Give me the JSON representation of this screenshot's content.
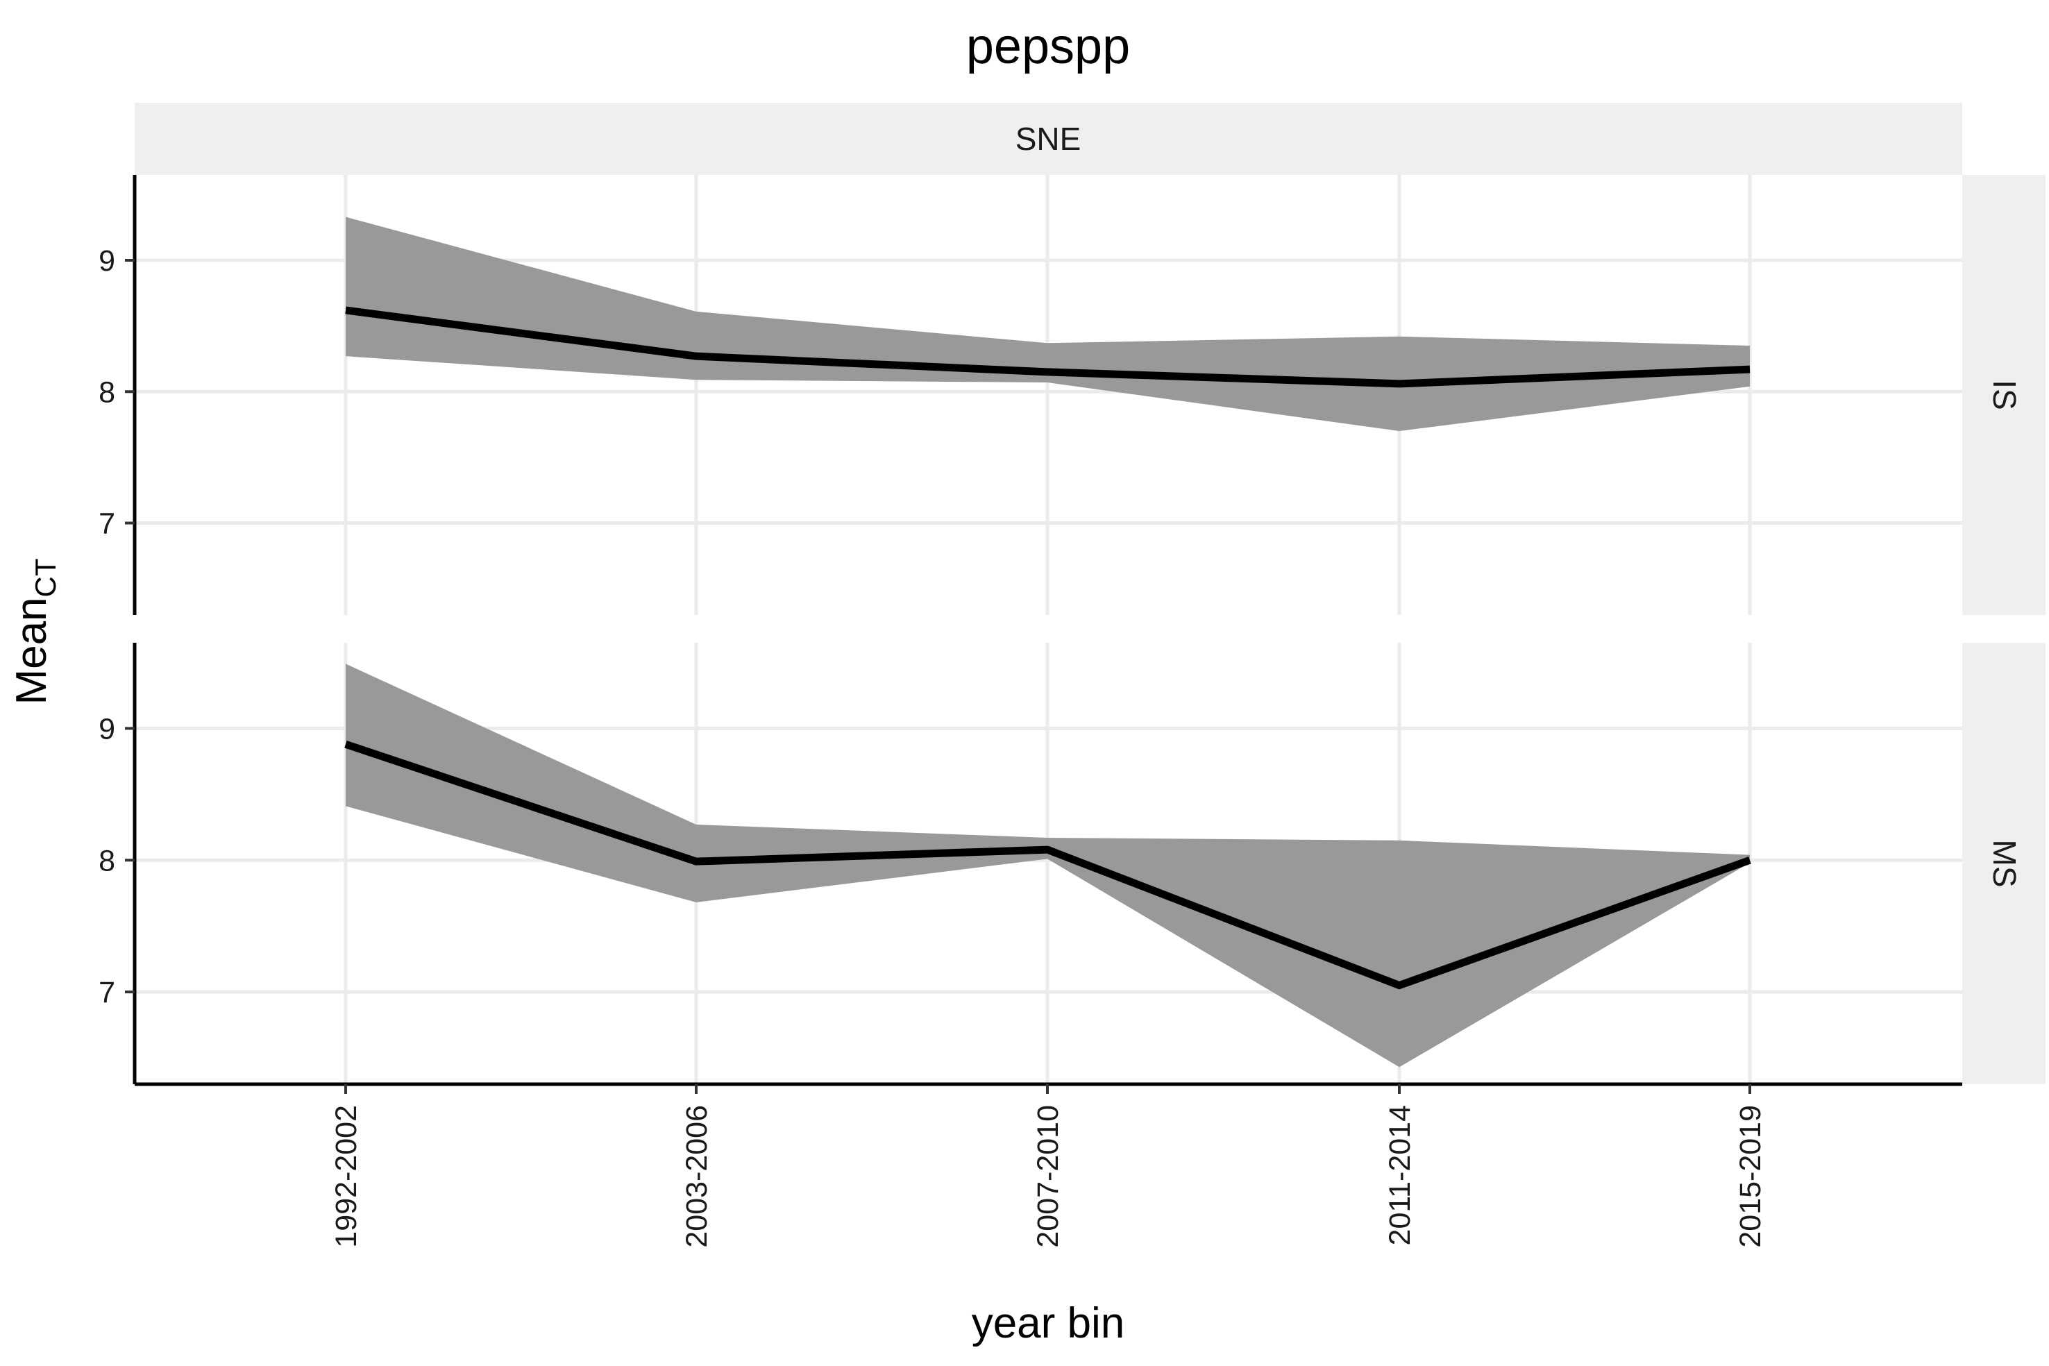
{
  "chart_data": {
    "type": "line",
    "title": "pepspp",
    "xlabel": "year bin",
    "ylabel": "Mean",
    "ylabel_subscript": "CT",
    "categories": [
      "1992-2002",
      "2003-2006",
      "2007-2010",
      "2011-2014",
      "2015-2019"
    ],
    "facet_col": "SNE",
    "ylim": [
      6.3,
      9.65
    ],
    "yticks": [
      "7",
      "8",
      "9"
    ],
    "grid": true,
    "legend": "none",
    "colors": {
      "line": "#000000",
      "ribbon": "#999999",
      "strip": "#efefef",
      "grid": "#ebebeb"
    },
    "panels": [
      {
        "row_label": "IS",
        "values": [
          8.62,
          8.27,
          8.15,
          8.06,
          8.17
        ],
        "lower": [
          8.27,
          8.09,
          8.07,
          7.7,
          8.04
        ],
        "upper": [
          9.33,
          8.61,
          8.37,
          8.42,
          8.35
        ]
      },
      {
        "row_label": "MS",
        "values": [
          8.88,
          7.99,
          8.08,
          7.05,
          8.0
        ],
        "lower": [
          8.41,
          7.68,
          8.01,
          6.43,
          7.98
        ],
        "upper": [
          9.49,
          8.27,
          8.17,
          8.15,
          8.04
        ]
      }
    ]
  }
}
